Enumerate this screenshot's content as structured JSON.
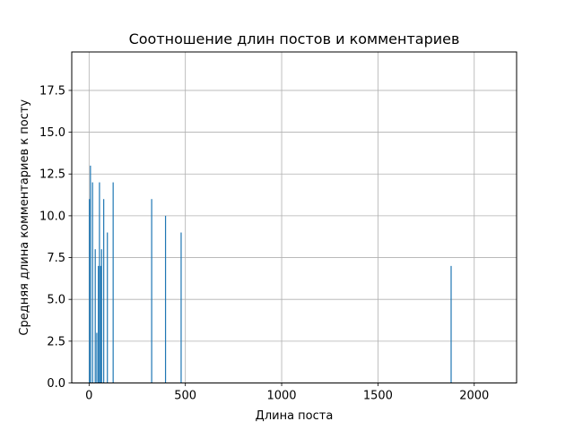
{
  "chart_data": {
    "type": "bar",
    "title": "Соотношение длин постов и комментариев",
    "xlabel": "Длина поста",
    "ylabel": "Средняя длина комментариев к посту",
    "xlim": [
      -90,
      2220
    ],
    "ylim": [
      0,
      19.8
    ],
    "x_ticks": [
      0,
      500,
      1000,
      1500,
      2000
    ],
    "x_tick_labels": [
      "0",
      "500",
      "1000",
      "1500",
      "2000"
    ],
    "y_ticks": [
      0.0,
      2.5,
      5.0,
      7.5,
      10.0,
      12.5,
      15.0,
      17.5
    ],
    "y_tick_labels": [
      "0.0",
      "2.5",
      "5.0",
      "7.5",
      "10.0",
      "12.5",
      "15.0",
      "17.5"
    ],
    "grid": true,
    "bar_color": "#1f77b4",
    "x": [
      2,
      7,
      18,
      32,
      40,
      48,
      54,
      60,
      65,
      76,
      95,
      125,
      325,
      397,
      478,
      1880
    ],
    "values": [
      11.0,
      13.0,
      12.0,
      8.0,
      3.0,
      7.0,
      12.0,
      7.0,
      8.0,
      11.0,
      9.0,
      12.0,
      11.0,
      10.0,
      9.0,
      7.0
    ]
  }
}
